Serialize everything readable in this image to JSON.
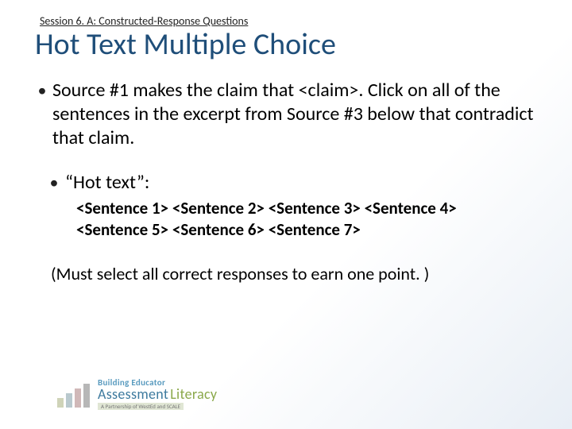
{
  "session_label": "Session 6. A: Constructed-Response Questions",
  "title": "Hot Text Multiple Choice",
  "bullet1": {
    "pre": "Source #1 makes the claim that ",
    "claim_token": "<claim>",
    "post": ".  Click on all of the sentences in the excerpt from Source #3 below that contradict that claim."
  },
  "sub_bullet_label": "“Hot text”:",
  "sentences": [
    "<Sentence 1>",
    "<Sentence 2>",
    "<Sentence 3>",
    "<Sentence 4>",
    "<Sentence 5>",
    "<Sentence 6>",
    "<Sentence 7>"
  ],
  "note": "(Must select all correct responses to earn one point. )",
  "logo": {
    "line1": "Building Educator",
    "word1": "Assessment",
    "word2": "Literacy",
    "line3": "A Partnership of WestEd and SCALE",
    "bar_heights": [
      12,
      18,
      24,
      30
    ],
    "bar_colors": [
      "#cfd3b8",
      "#b9c9ce",
      "#d0b8b8",
      "#b7b7b7"
    ]
  },
  "colors": {
    "title": "#1f4e79",
    "text": "#000000",
    "background_gradient_start": "#ffffff",
    "background_gradient_end": "#e8eef5"
  },
  "typography": {
    "title_fontsize": 38,
    "body_fontsize": 24,
    "sentence_fontsize": 21,
    "session_fontsize": 14
  }
}
